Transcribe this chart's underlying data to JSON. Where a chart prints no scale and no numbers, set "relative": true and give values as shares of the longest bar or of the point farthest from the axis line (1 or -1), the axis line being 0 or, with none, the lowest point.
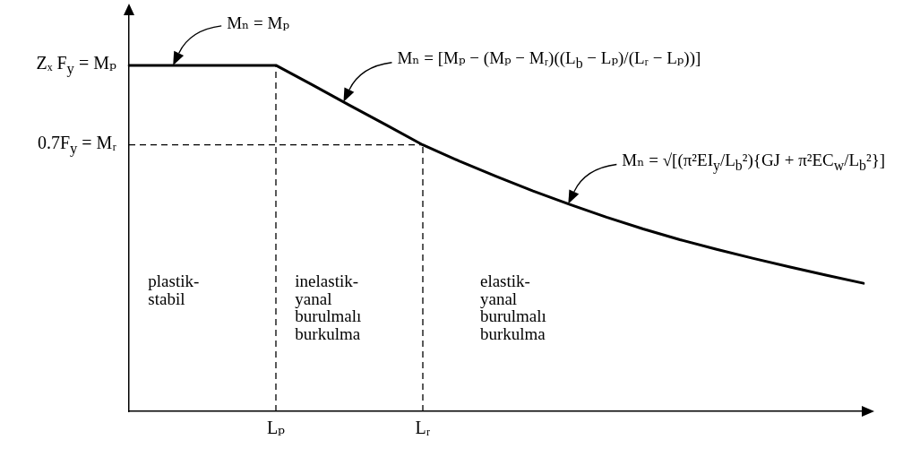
{
  "chart_data": {
    "type": "line",
    "relative": true,
    "tick_labels": "x",
    "categories": [
      null,
      null,
      null,
      null,
      "Lₚ",
      null,
      null,
      null,
      "Lᵣ",
      null,
      null,
      null,
      null,
      null,
      null,
      null,
      null,
      null,
      null,
      null,
      null
    ],
    "series": [
      {
        "color": "#000000",
        "values": [
          1,
          1,
          1,
          1,
          1,
          0.943,
          0.885,
          0.828,
          0.77,
          0.723,
          0.679,
          0.637,
          0.598,
          0.561,
          0.527,
          0.496,
          0.468,
          0.442,
          0.417,
          0.393,
          0.37
        ]
      }
    ],
    "ref_lines": [
      {
        "axis": "x",
        "value": "Lₚ",
        "line_style": "dashed"
      },
      {
        "axis": "x",
        "value": "Lᵣ",
        "line_style": "dashed"
      },
      {
        "axis": "y",
        "value": 0.77,
        "label": "0.7F$_{y}$ = Mᵣ",
        "line_style": "dashed"
      }
    ],
    "annotations": [
      "Zₓ F$_{y}$ = Mₚ",
      "Mₙ = Mₚ",
      "Mₙ = [Mₚ − (Mₚ − Mᵣ)((L$_{b}$ − Lₚ)/(Lᵣ − Lₚ))]",
      "Mₙ = √[(π²EI$_{y}$/L$_{b}$²){GJ + π²EC$_{w}$/L$_{b}$²}]",
      "plastik-stabil",
      "inelastik-yanal burulmalı burkulma",
      "elastik-yanal burulmalı burkulma"
    ]
  }
}
